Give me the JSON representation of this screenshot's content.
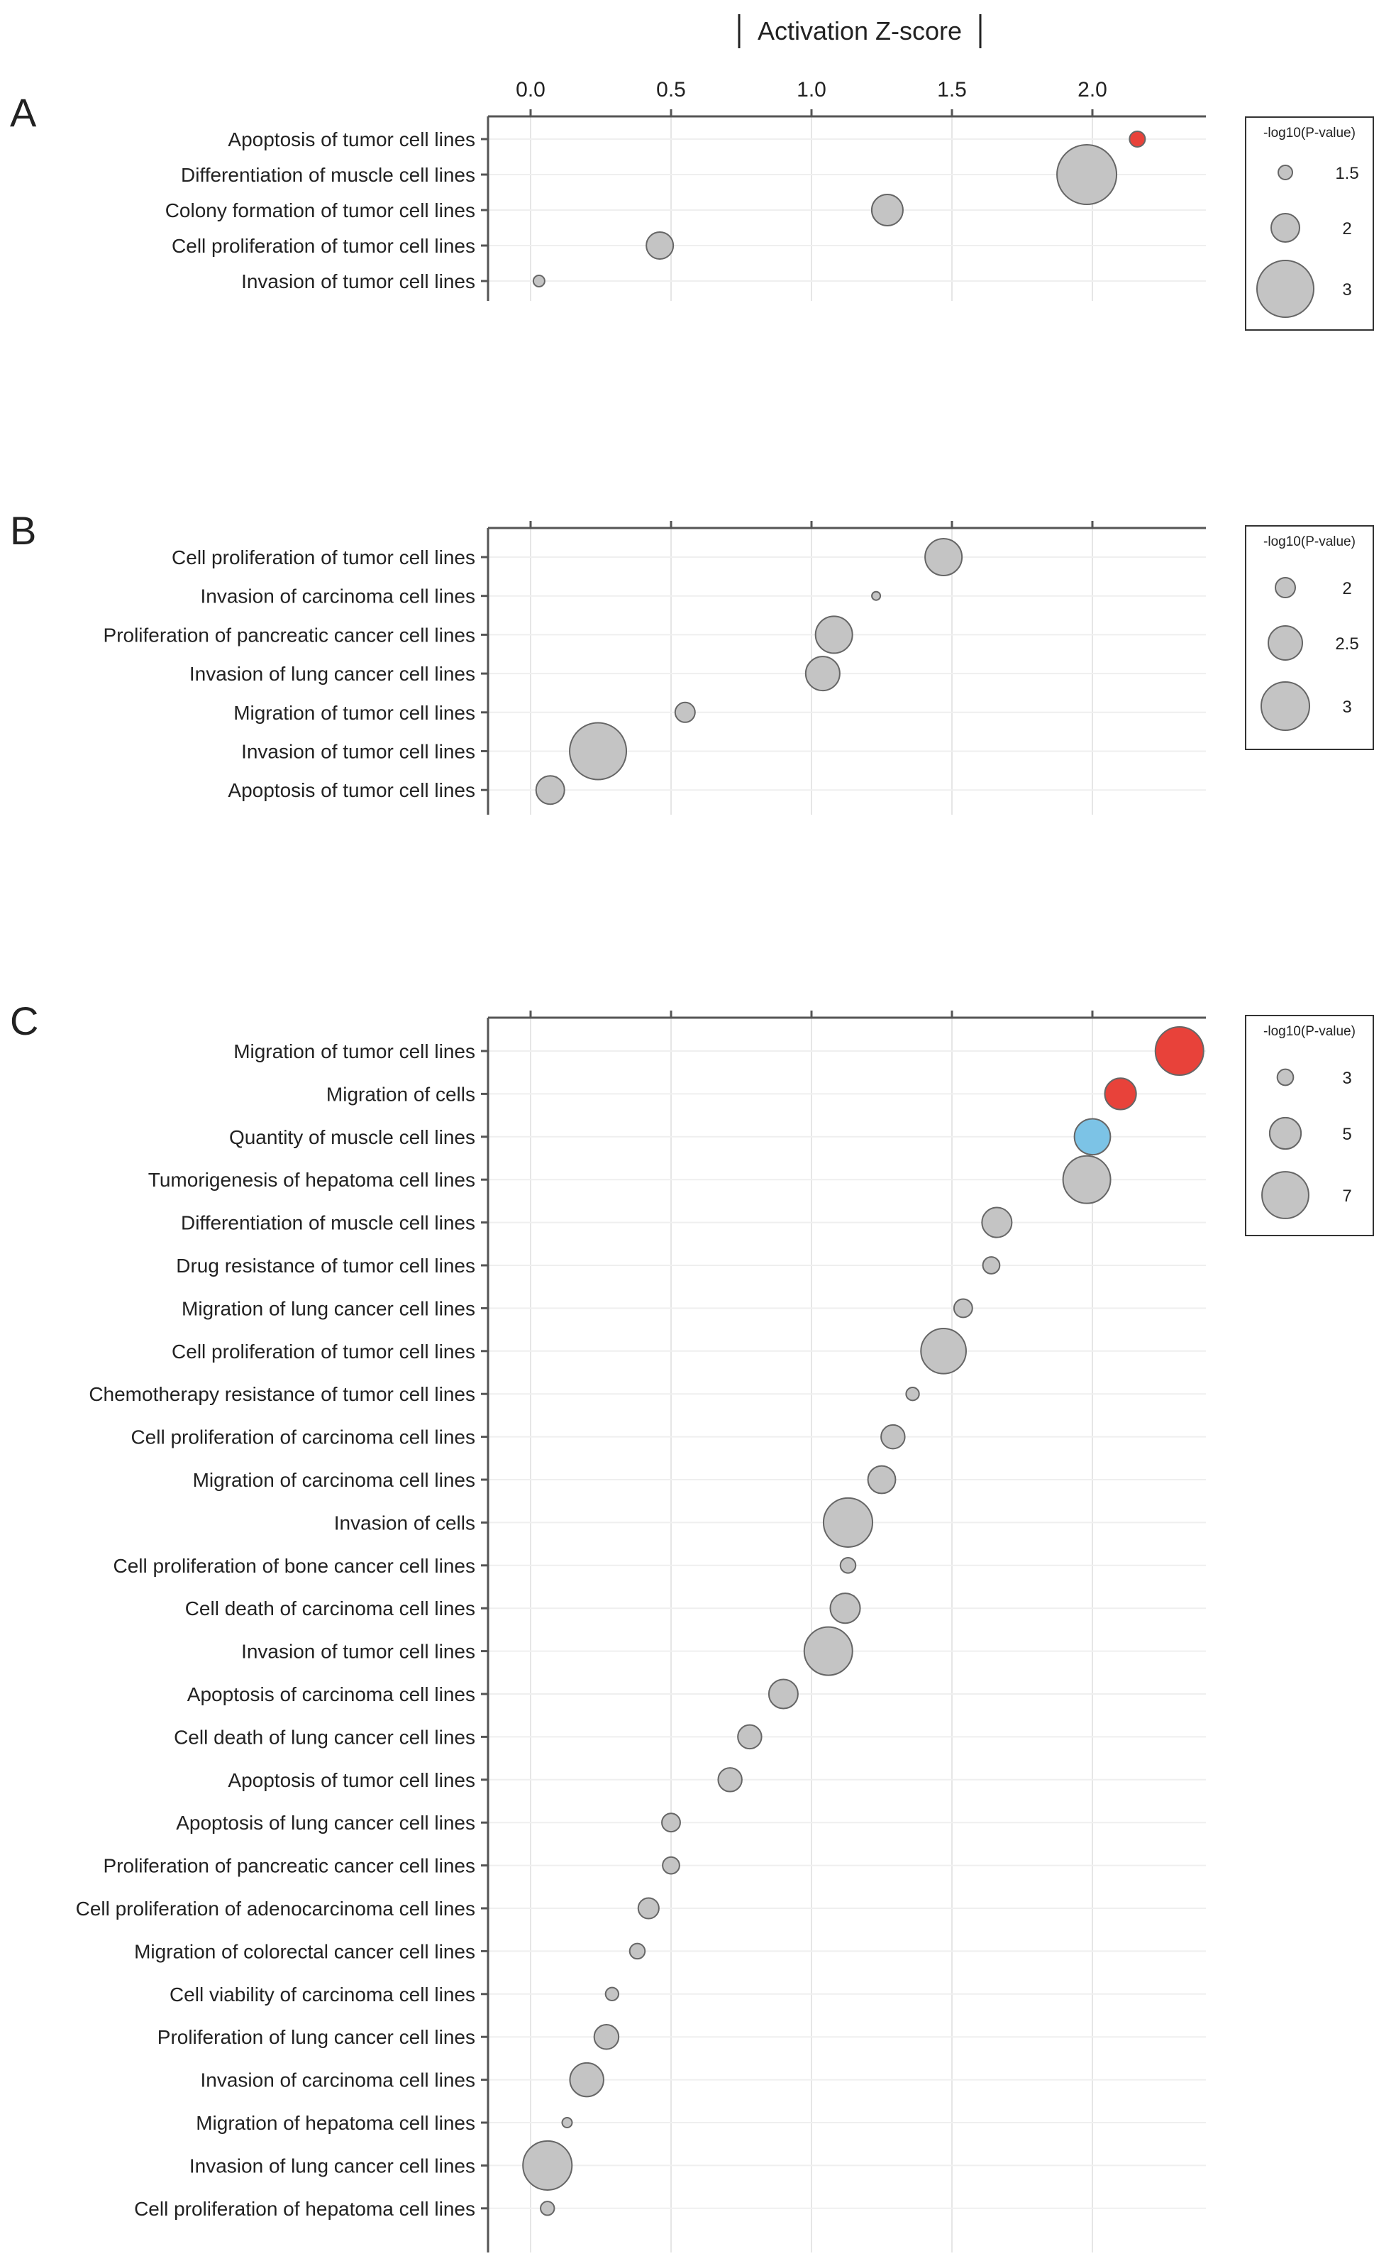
{
  "axis_title": "Activation Z-score",
  "x_ticks": [
    "0.0",
    "0.5",
    "1.0",
    "1.5",
    "2.0"
  ],
  "legend_title": "-log10(P-value)",
  "colors": {
    "gray": "#c4c4c4",
    "red": "#e8423a",
    "blue": "#7cc3e6",
    "stroke": "#666666",
    "axis": "#555555",
    "grid": "#e6e6e6"
  },
  "chart_data": [
    {
      "type": "scatter",
      "panel": "A",
      "title": "Activation Z-score",
      "xlabel": "Activation Z-score",
      "xlim": [
        -0.15,
        2.5
      ],
      "size_metric": "-log10(P-value)",
      "legend": {
        "title": "-log10(P-value)",
        "sizes": [
          1.5,
          2,
          3
        ],
        "labels": [
          "1.5",
          "2",
          "3"
        ]
      },
      "categories": [
        "Apoptosis of tumor cell lines",
        "Differentiation of muscle cell lines",
        "Colony formation of tumor cell lines",
        "Cell proliferation of tumor cell lines",
        "Invasion of tumor cell lines"
      ],
      "x": [
        2.16,
        1.98,
        1.27,
        0.46,
        0.03
      ],
      "size": [
        1.55,
        3.1,
        2.1,
        1.95,
        1.4
      ],
      "color": [
        "red",
        "gray",
        "gray",
        "gray",
        "gray"
      ]
    },
    {
      "type": "scatter",
      "panel": "B",
      "xlabel": "Activation Z-score",
      "xlim": [
        -0.15,
        2.5
      ],
      "size_metric": "-log10(P-value)",
      "legend": {
        "title": "-log10(P-value)",
        "sizes": [
          2,
          2.5,
          3
        ],
        "labels": [
          "2",
          "2.5",
          "3"
        ]
      },
      "categories": [
        "Cell proliferation of tumor cell lines",
        "Invasion of carcinoma cell lines",
        "Proliferation of pancreatic cancer cell lines",
        "Invasion of lung cancer cell lines",
        "Migration of tumor cell lines",
        "Invasion of tumor cell lines",
        "Apoptosis of tumor cell lines"
      ],
      "x": [
        1.47,
        1.23,
        1.08,
        1.04,
        0.55,
        0.24,
        0.07
      ],
      "size": [
        2.6,
        1.6,
        2.6,
        2.5,
        2.0,
        3.3,
        2.3
      ],
      "color": [
        "gray",
        "gray",
        "gray",
        "gray",
        "gray",
        "gray",
        "gray"
      ]
    },
    {
      "type": "scatter",
      "panel": "C",
      "xlabel": "Activation Z-score",
      "xlim": [
        -0.15,
        2.5
      ],
      "size_metric": "-log10(P-value)",
      "legend": {
        "title": "-log10(P-value)",
        "sizes": [
          3,
          5,
          7
        ],
        "labels": [
          "3",
          "5",
          "7"
        ]
      },
      "categories": [
        "Migration of tumor cell lines",
        "Migration of cells",
        "Quantity of muscle cell lines",
        "Tumorigenesis of hepatoma cell lines",
        "Differentiation of muscle cell lines",
        "Drug resistance of tumor cell lines",
        "Migration of lung cancer cell lines",
        "Cell proliferation of tumor cell lines",
        "Chemotherapy resistance of tumor cell lines",
        "Cell proliferation of carcinoma cell lines",
        "Migration of carcinoma cell lines",
        "Invasion of cells",
        "Cell proliferation of bone cancer cell lines",
        "Cell death of carcinoma cell lines",
        "Invasion of tumor cell lines",
        "Apoptosis of carcinoma cell lines",
        "Cell death of lung cancer cell lines",
        "Apoptosis of tumor cell lines",
        "Apoptosis of lung cancer cell lines",
        "Proliferation of pancreatic cancer cell lines",
        "Cell proliferation of adenocarcinoma cell lines",
        "Migration of colorectal cancer cell lines",
        "Cell viability of carcinoma cell lines",
        "Proliferation of lung cancer cell lines",
        "Invasion of carcinoma cell lines",
        "Migration of hepatoma cell lines",
        "Invasion of lung cancer cell lines",
        "Cell proliferation of hepatoma cell lines"
      ],
      "x": [
        2.31,
        2.1,
        2.0,
        1.98,
        1.66,
        1.64,
        1.54,
        1.47,
        1.36,
        1.29,
        1.25,
        1.13,
        1.13,
        1.12,
        1.06,
        0.9,
        0.78,
        0.71,
        0.5,
        0.5,
        0.42,
        0.38,
        0.29,
        0.27,
        0.2,
        0.13,
        0.06,
        0.06
      ],
      "size": [
        7.2,
        5.0,
        5.6,
        7.1,
        4.8,
        3.1,
        3.3,
        6.8,
        2.6,
        4.0,
        4.5,
        7.3,
        2.9,
        4.8,
        7.2,
        4.7,
        4.0,
        4.0,
        3.3,
        3.1,
        3.6,
        2.9,
        2.6,
        4.1,
        5.3,
        2.2,
        7.3,
        2.7
      ],
      "color": [
        "red",
        "red",
        "blue",
        "gray",
        "gray",
        "gray",
        "gray",
        "gray",
        "gray",
        "gray",
        "gray",
        "gray",
        "gray",
        "gray",
        "gray",
        "gray",
        "gray",
        "gray",
        "gray",
        "gray",
        "gray",
        "gray",
        "gray",
        "gray",
        "gray",
        "gray",
        "gray",
        "gray"
      ]
    }
  ]
}
